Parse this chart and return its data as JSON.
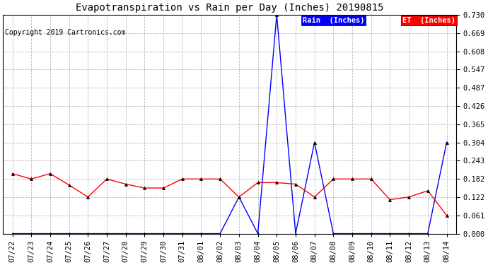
{
  "title": "Evapotranspiration vs Rain per Day (Inches) 20190815",
  "copyright": "Copyright 2019 Cartronics.com",
  "labels": [
    "07/22",
    "07/23",
    "07/24",
    "07/25",
    "07/26",
    "07/27",
    "07/28",
    "07/29",
    "07/30",
    "07/31",
    "08/01",
    "08/02",
    "08/03",
    "08/04",
    "08/05",
    "08/06",
    "08/07",
    "08/08",
    "08/09",
    "08/10",
    "08/11",
    "08/12",
    "08/13",
    "08/14"
  ],
  "rain": [
    0.0,
    0.0,
    0.0,
    0.0,
    0.0,
    0.0,
    0.0,
    0.0,
    0.0,
    0.0,
    0.0,
    0.0,
    0.122,
    0.0,
    0.73,
    0.0,
    0.304,
    0.0,
    0.0,
    0.0,
    0.0,
    0.0,
    0.0,
    0.304
  ],
  "et": [
    0.2,
    0.182,
    0.2,
    0.162,
    0.122,
    0.182,
    0.165,
    0.152,
    0.152,
    0.182,
    0.182,
    0.182,
    0.122,
    0.17,
    0.17,
    0.165,
    0.122,
    0.182,
    0.182,
    0.182,
    0.113,
    0.122,
    0.143,
    0.061
  ],
  "rain_color": "#0000FF",
  "et_color": "#FF0000",
  "bg_color": "#FFFFFF",
  "grid_color": "#BBBBBB",
  "yticks": [
    0.0,
    0.061,
    0.122,
    0.182,
    0.243,
    0.304,
    0.365,
    0.426,
    0.487,
    0.547,
    0.608,
    0.669,
    0.73
  ],
  "ylim": [
    0.0,
    0.73
  ],
  "legend_rain_label": "Rain  (Inches)",
  "legend_et_label": "ET  (Inches)",
  "legend_rain_bg": "#0000FF",
  "legend_et_bg": "#FF0000",
  "title_fontsize": 10,
  "copyright_fontsize": 7,
  "tick_fontsize": 7.5,
  "marker": "^",
  "marker_size": 3,
  "linewidth": 1.0
}
